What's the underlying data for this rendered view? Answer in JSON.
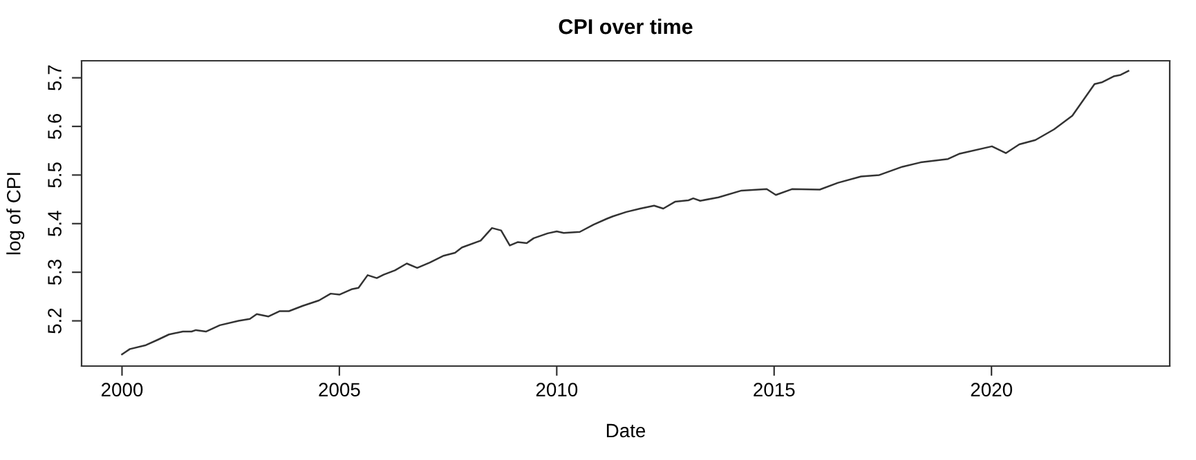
{
  "chart_data": {
    "type": "line",
    "title": "CPI over time",
    "xlabel": "Date",
    "ylabel": "log of CPI",
    "xlim": [
      1999.07,
      2024.1
    ],
    "ylim": [
      5.107,
      5.735
    ],
    "xticks": [
      2000,
      2005,
      2010,
      2015,
      2020
    ],
    "yticks": [
      5.2,
      5.3,
      5.4,
      5.5,
      5.6,
      5.7
    ],
    "grid": false,
    "marker": "none",
    "line_style": "solid",
    "series": [
      {
        "color": "#333333",
        "x": [
          2000,
          2000.18,
          2000.55,
          2000.82,
          2001.08,
          2001.4,
          2001.6,
          2001.7,
          2001.93,
          2002.25,
          2002.68,
          2002.94,
          2003.1,
          2003.37,
          2003.63,
          2003.84,
          2004.16,
          2004.53,
          2004.8,
          2005.0,
          2005.28,
          2005.44,
          2005.65,
          2005.86,
          2006.02,
          2006.28,
          2006.55,
          2006.79,
          2007.08,
          2007.4,
          2007.66,
          2007.82,
          2008.25,
          2008.51,
          2008.72,
          2008.92,
          2009.1,
          2009.31,
          2009.47,
          2009.79,
          2010.0,
          2010.16,
          2010.53,
          2010.85,
          2011.15,
          2011.29,
          2011.6,
          2011.92,
          2012.24,
          2012.45,
          2012.72,
          2013.03,
          2013.14,
          2013.3,
          2013.72,
          2014.25,
          2014.83,
          2015.04,
          2015.41,
          2016.05,
          2016.47,
          2017.0,
          2017.42,
          2017.95,
          2018.37,
          2019.0,
          2019.27,
          2020.01,
          2020.33,
          2020.64,
          2021.01,
          2021.44,
          2021.86,
          2022.37,
          2022.55,
          2022.81,
          2022.97,
          2023.15
        ],
        "values": [
          5.131,
          5.142,
          5.15,
          5.161,
          5.172,
          5.178,
          5.178,
          5.181,
          5.178,
          5.191,
          5.2,
          5.204,
          5.214,
          5.209,
          5.22,
          5.22,
          5.231,
          5.242,
          5.256,
          5.254,
          5.265,
          5.268,
          5.294,
          5.288,
          5.295,
          5.304,
          5.318,
          5.309,
          5.32,
          5.334,
          5.34,
          5.351,
          5.365,
          5.391,
          5.386,
          5.355,
          5.362,
          5.36,
          5.37,
          5.38,
          5.384,
          5.381,
          5.383,
          5.398,
          5.41,
          5.415,
          5.424,
          5.431,
          5.437,
          5.431,
          5.445,
          5.448,
          5.452,
          5.447,
          5.454,
          5.468,
          5.471,
          5.459,
          5.471,
          5.47,
          5.484,
          5.497,
          5.5,
          5.517,
          5.526,
          5.533,
          5.544,
          5.559,
          5.545,
          5.563,
          5.572,
          5.594,
          5.622,
          5.687,
          5.691,
          5.703,
          5.706,
          5.714
        ]
      }
    ]
  }
}
